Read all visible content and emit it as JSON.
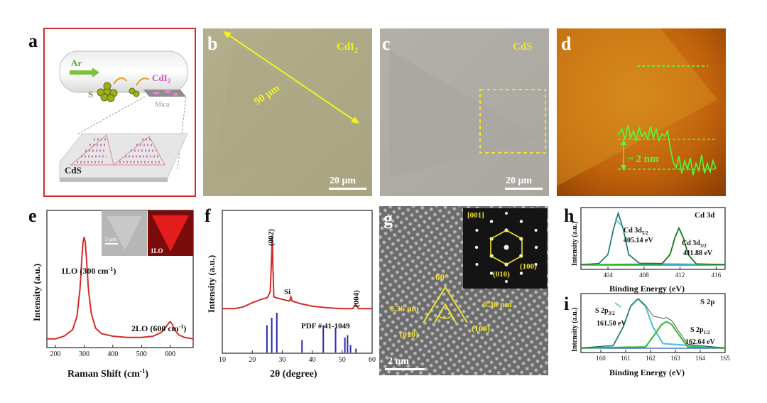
{
  "panels": {
    "a": {
      "letter": "a",
      "gas": "Ar",
      "sulfur": "S",
      "precursor": "CdI",
      "precursor_sub": "2",
      "substrate": "Mica",
      "product": "CdS"
    },
    "b": {
      "letter": "b",
      "label": "CdI",
      "label_sub": "2",
      "measure": "90 μm",
      "scalebar": "20 μm"
    },
    "c": {
      "letter": "c",
      "label": "CdS",
      "scalebar": "20 μm"
    },
    "d": {
      "letter": "d",
      "height": "~ 2 nm"
    },
    "e": {
      "letter": "e",
      "inset_scalebar": "5 μm",
      "inset_map_label": "1LO",
      "peak1": "1LO (300 cm",
      "peak1_sup": "-1",
      "peak1_close": ")",
      "peak2": "2LO (600 cm",
      "peak2_sup": "-1",
      "peak2_close": ")"
    },
    "f": {
      "letter": "f",
      "peak_002": "(002)",
      "peak_004": "(004)",
      "si": "Si",
      "pdf": "PDF # 41-1049"
    },
    "g": {
      "letter": "g",
      "zone": "[001]",
      "spot_100": "(100)",
      "spot_010": "(010)",
      "angle": "60°",
      "d_left": "0.36 nm",
      "d_right": "0.36 nm",
      "plane_left": "(010)",
      "plane_right": "(100)",
      "scalebar": "2 nm"
    },
    "h": {
      "letter": "h",
      "title": "Cd 3d",
      "p1_name": "Cd 3d",
      "p1_sub": "5/2",
      "p1_be": "405.14 eV",
      "p2_name": "Cd 3d",
      "p2_sub": "3/2",
      "p2_be": "411.88 eV"
    },
    "i": {
      "letter": "i",
      "title": "S 2p",
      "p1_name": "S 2p",
      "p1_sub": "3/2",
      "p1_be": "161.50 eV",
      "p2_name": "S 2p",
      "p2_sub": "1/2",
      "p2_be": "162.64 eV"
    }
  },
  "chart_data": [
    {
      "panel": "e",
      "type": "line",
      "xlabel": "Raman Shift (cm",
      "xlabel_sup": "-1",
      "xlabel_close": ")",
      "ylabel": "Intensity (a.u.)",
      "xlim": [
        170,
        680
      ],
      "ylim": [
        0,
        1
      ],
      "xticks": [
        200,
        300,
        400,
        500,
        600
      ],
      "series": [
        {
          "color": "#d42a2a",
          "x": [
            170,
            200,
            230,
            260,
            275,
            285,
            292,
            296,
            300,
            304,
            308,
            315,
            325,
            340,
            360,
            400,
            450,
            500,
            540,
            570,
            585,
            595,
            600,
            607,
            615,
            630,
            650,
            680
          ],
          "y": [
            0.05,
            0.05,
            0.07,
            0.12,
            0.22,
            0.42,
            0.66,
            0.78,
            0.82,
            0.78,
            0.66,
            0.42,
            0.24,
            0.13,
            0.09,
            0.07,
            0.06,
            0.06,
            0.07,
            0.1,
            0.14,
            0.17,
            0.18,
            0.16,
            0.12,
            0.08,
            0.06,
            0.05
          ]
        }
      ]
    },
    {
      "panel": "f",
      "type": "line",
      "xlabel": "2θ (degree)",
      "ylabel": "Intensity (a.u.)",
      "xlim": [
        10,
        60
      ],
      "xticks": [
        10,
        20,
        30,
        40,
        50,
        60
      ],
      "series": [
        {
          "color": "#d42a2a",
          "x": [
            10,
            14,
            17,
            20,
            23,
            25,
            26,
            26.5,
            26.7,
            26.9,
            27.2,
            28,
            30,
            32.5,
            32.9,
            33.3,
            36,
            40,
            45,
            50,
            53.5,
            54.5,
            55.5,
            60
          ],
          "y": [
            0.1,
            0.1,
            0.12,
            0.17,
            0.21,
            0.23,
            0.3,
            0.75,
            0.97,
            0.6,
            0.24,
            0.23,
            0.21,
            0.19,
            0.24,
            0.19,
            0.16,
            0.13,
            0.11,
            0.1,
            0.1,
            0.15,
            0.1,
            0.1
          ]
        }
      ],
      "reference_bars": {
        "name": "PDF # 41-1049",
        "color": "#2a2ab0",
        "x": [
          24.9,
          26.5,
          28.2,
          36.6,
          43.7,
          47.8,
          50.9,
          51.8,
          52.8,
          54.6
        ],
        "h": [
          0.55,
          0.7,
          0.8,
          0.25,
          0.55,
          0.5,
          0.3,
          0.35,
          0.15,
          0.08
        ]
      }
    },
    {
      "panel": "h",
      "type": "line",
      "xlabel": "Binding Energy (eV)",
      "ylabel": "Intensity (a.u.)",
      "xlim": [
        401,
        417
      ],
      "xticks": [
        404,
        408,
        412,
        416
      ],
      "series": [
        {
          "name": "Cd 3d5/2",
          "color": "#3cc8c8",
          "x": [
            401,
            403,
            404,
            404.6,
            405.14,
            405.7,
            406.3,
            407.5,
            417
          ],
          "y": [
            0.08,
            0.1,
            0.25,
            0.68,
            0.95,
            0.68,
            0.25,
            0.1,
            0.08
          ]
        },
        {
          "name": "Cd 3d3/2",
          "color": "#2db82d",
          "x": [
            401,
            410,
            410.9,
            411.4,
            411.88,
            412.4,
            412.9,
            413.8,
            417
          ],
          "y": [
            0.08,
            0.09,
            0.25,
            0.52,
            0.7,
            0.52,
            0.25,
            0.09,
            0.08
          ]
        }
      ]
    },
    {
      "panel": "i",
      "type": "line",
      "xlabel": "Binding Energy (eV)",
      "ylabel": "Intensity (a.u.)",
      "xlim": [
        159.2,
        165
      ],
      "xticks": [
        160,
        161,
        162,
        163,
        164,
        165
      ],
      "series": [
        {
          "name": "S 2p3/2",
          "color": "#3cc8c8",
          "x": [
            159.2,
            160.5,
            160.9,
            161.2,
            161.5,
            161.8,
            162.1,
            162.5,
            165
          ],
          "y": [
            0.08,
            0.12,
            0.45,
            0.82,
            0.95,
            0.82,
            0.45,
            0.16,
            0.08
          ]
        },
        {
          "name": "S 2p1/2",
          "color": "#2db82d",
          "x": [
            159.2,
            161.8,
            162.2,
            162.45,
            162.64,
            162.85,
            163.1,
            163.5,
            165
          ],
          "y": [
            0.08,
            0.1,
            0.34,
            0.5,
            0.55,
            0.5,
            0.34,
            0.1,
            0.08
          ]
        }
      ]
    }
  ]
}
